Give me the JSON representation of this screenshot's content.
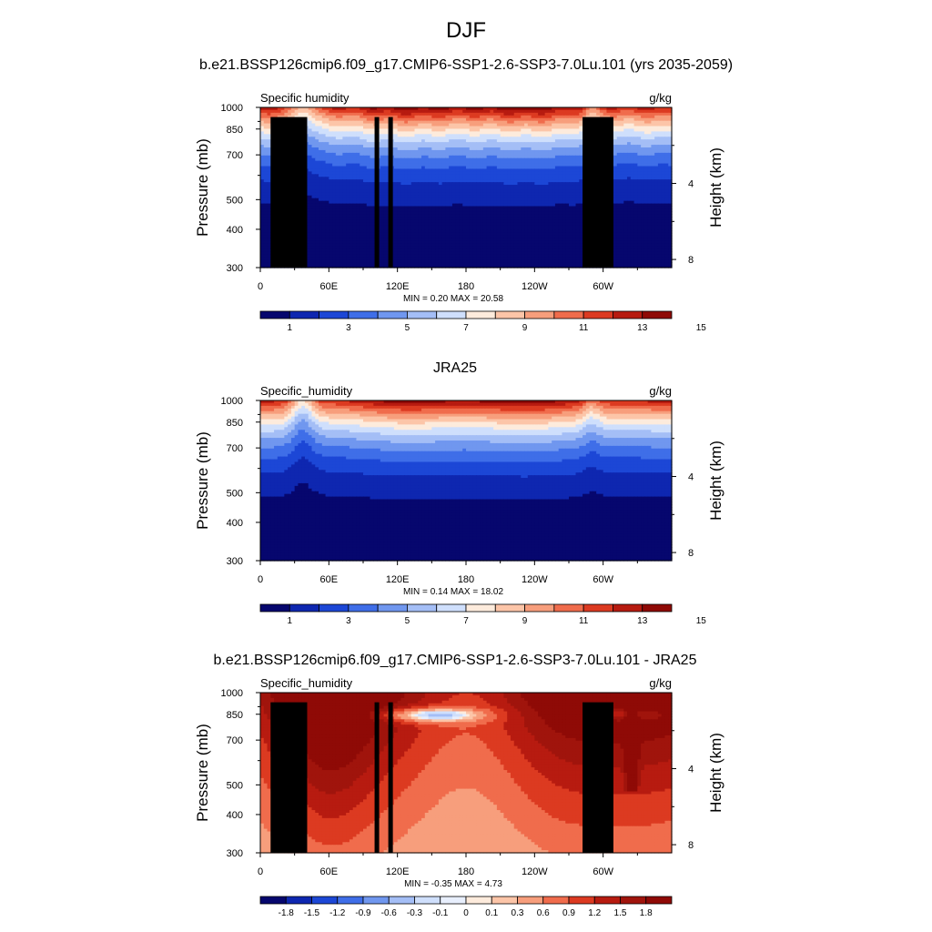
{
  "title": "DJF",
  "subtitle": "b.e21.BSSP126cmip6.f09_g17.CMIP6-SSP1-2.6-SSP3-7.0Lu.101 (yrs 2035-2059)",
  "ylabel_left": "Pressure (mb)",
  "ylabel_right": "Height (km)",
  "pressure_ticks": [
    "300",
    "400",
    "500",
    "700",
    "850",
    "1000"
  ],
  "height_ticks": [
    "8",
    "4"
  ],
  "lon_ticks": [
    "0",
    "60E",
    "120E",
    "180",
    "120W",
    "60W"
  ],
  "chart_data": [
    {
      "type": "heatmap",
      "panel_title": "",
      "variable": "Specific humidity",
      "units": "g/kg",
      "stats": {
        "min": "0.20",
        "max": "20.58"
      },
      "colorbar": {
        "labels": [
          "1",
          "3",
          "5",
          "7",
          "9",
          "11",
          "13",
          "15"
        ],
        "colors": [
          "#06076e",
          "#0e27b0",
          "#1c47d6",
          "#3f6ee8",
          "#7097ef",
          "#a4bef6",
          "#cfdffc",
          "#fdebdc",
          "#fcc5a8",
          "#f79e7c",
          "#f06c4c",
          "#dc3a21",
          "#b71b10",
          "#8f0a06"
        ]
      },
      "xlim": [
        0,
        360
      ],
      "ylim": [
        1000,
        300
      ]
    },
    {
      "type": "heatmap",
      "panel_title": "JRA25",
      "variable": "Specific_humidity",
      "units": "g/kg",
      "stats": {
        "min": "0.14",
        "max": "18.02"
      },
      "colorbar": {
        "labels": [
          "1",
          "3",
          "5",
          "7",
          "9",
          "11",
          "13",
          "15"
        ],
        "colors": [
          "#06076e",
          "#0e27b0",
          "#1c47d6",
          "#3f6ee8",
          "#7097ef",
          "#a4bef6",
          "#cfdffc",
          "#fdebdc",
          "#fcc5a8",
          "#f79e7c",
          "#f06c4c",
          "#dc3a21",
          "#b71b10",
          "#8f0a06"
        ]
      },
      "xlim": [
        0,
        360
      ],
      "ylim": [
        1000,
        300
      ]
    },
    {
      "type": "heatmap",
      "panel_title": "b.e21.BSSP126cmip6.f09_g17.CMIP6-SSP1-2.6-SSP3-7.0Lu.101 - JRA25",
      "variable": "Specific_humidity",
      "units": "g/kg",
      "stats": {
        "min": "-0.35",
        "max": "4.73"
      },
      "colorbar": {
        "labels": [
          "-1.8",
          "-1.5",
          "-1.2",
          "-0.9",
          "-0.6",
          "-0.3",
          "-0.1",
          "0",
          "0.1",
          "0.3",
          "0.6",
          "0.9",
          "1.2",
          "1.5",
          "1.8"
        ],
        "colors": [
          "#06076e",
          "#0e27b0",
          "#1c47d6",
          "#3f6ee8",
          "#7097ef",
          "#a4bef6",
          "#cfdffc",
          "#e8effd",
          "#fdebdc",
          "#fcc5a8",
          "#f79e7c",
          "#f06c4c",
          "#dc3a21",
          "#b71b10",
          "#a0140c",
          "#8f0a06"
        ]
      },
      "xlim": [
        0,
        360
      ],
      "ylim": [
        1000,
        300
      ]
    }
  ]
}
